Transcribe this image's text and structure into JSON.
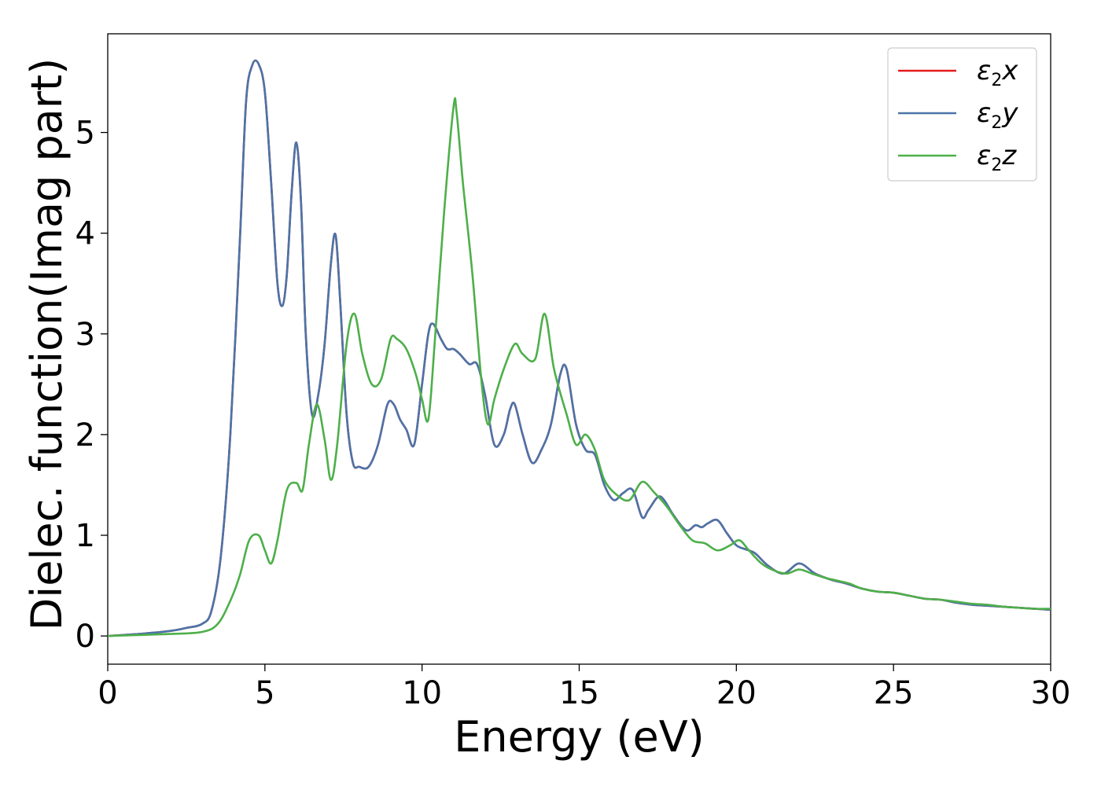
{
  "chart_data": {
    "type": "line",
    "xlabel": "Energy (eV)",
    "ylabel": "Dielec. function(Imag part)",
    "xlim": [
      0,
      30
    ],
    "ylim": [
      -0.28,
      5.98
    ],
    "xticks": [
      0,
      5,
      10,
      15,
      20,
      25,
      30
    ],
    "yticks": [
      0,
      1,
      2,
      3,
      4,
      5
    ],
    "grid": false,
    "legend_position": "top-right",
    "series": [
      {
        "name": "ε₂x",
        "legend_base": "ε",
        "legend_sub": "2",
        "legend_var": "x",
        "color": "#e41a1c",
        "x": [
          0,
          1,
          2,
          2.5,
          3,
          3.3,
          3.6,
          3.9,
          4.2,
          4.4,
          4.6,
          4.8,
          5.0,
          5.2,
          5.4,
          5.56,
          5.7,
          5.85,
          6.0,
          6.15,
          6.3,
          6.5,
          6.7,
          6.9,
          7.1,
          7.25,
          7.4,
          7.6,
          7.8,
          8.0,
          8.3,
          8.6,
          8.9,
          9.1,
          9.3,
          9.5,
          9.75,
          10.0,
          10.2,
          10.35,
          10.6,
          10.8,
          11.0,
          11.2,
          11.5,
          11.75,
          12.0,
          12.3,
          12.6,
          12.8,
          12.95,
          13.2,
          13.5,
          13.8,
          14.1,
          14.4,
          14.6,
          14.9,
          15.2,
          15.5,
          15.8,
          16.1,
          16.4,
          16.7,
          17.0,
          17.2,
          17.5,
          17.7,
          18.0,
          18.4,
          18.7,
          18.9,
          19.1,
          19.4,
          19.7,
          20.0,
          20.3,
          20.6,
          21.0,
          21.5,
          22.0,
          22.5,
          23.0,
          23.5,
          24.0,
          24.5,
          25.0,
          25.5,
          26.0,
          26.5,
          27.0,
          27.5,
          28.0,
          28.5,
          29.0,
          29.5,
          30
        ],
        "y": [
          0.0,
          0.02,
          0.05,
          0.08,
          0.12,
          0.25,
          0.8,
          2.0,
          3.9,
          5.3,
          5.67,
          5.68,
          5.4,
          4.5,
          3.5,
          3.28,
          3.6,
          4.4,
          4.9,
          4.3,
          3.0,
          2.2,
          2.4,
          2.9,
          3.7,
          3.98,
          3.3,
          2.2,
          1.72,
          1.68,
          1.68,
          1.9,
          2.3,
          2.3,
          2.15,
          2.05,
          1.9,
          2.5,
          3.0,
          3.1,
          2.95,
          2.85,
          2.85,
          2.8,
          2.7,
          2.7,
          2.4,
          1.9,
          2.0,
          2.25,
          2.3,
          2.0,
          1.72,
          1.85,
          2.1,
          2.6,
          2.65,
          2.1,
          1.85,
          1.8,
          1.5,
          1.35,
          1.42,
          1.45,
          1.18,
          1.25,
          1.38,
          1.35,
          1.2,
          1.05,
          1.1,
          1.08,
          1.12,
          1.15,
          1.02,
          0.9,
          0.86,
          0.82,
          0.7,
          0.62,
          0.72,
          0.62,
          0.56,
          0.52,
          0.47,
          0.44,
          0.43,
          0.4,
          0.37,
          0.36,
          0.33,
          0.31,
          0.3,
          0.29,
          0.28,
          0.27,
          0.26
        ]
      },
      {
        "name": "ε₂y",
        "legend_base": "ε",
        "legend_sub": "2",
        "legend_var": "y",
        "color": "#4a74a8",
        "x": [
          0,
          1,
          2,
          2.5,
          3,
          3.3,
          3.6,
          3.9,
          4.2,
          4.4,
          4.6,
          4.8,
          5.0,
          5.2,
          5.4,
          5.56,
          5.7,
          5.85,
          6.0,
          6.15,
          6.3,
          6.5,
          6.7,
          6.9,
          7.1,
          7.25,
          7.4,
          7.6,
          7.8,
          8.0,
          8.3,
          8.6,
          8.9,
          9.1,
          9.3,
          9.5,
          9.75,
          10.0,
          10.2,
          10.35,
          10.6,
          10.8,
          11.0,
          11.2,
          11.5,
          11.75,
          12.0,
          12.3,
          12.6,
          12.8,
          12.95,
          13.2,
          13.5,
          13.8,
          14.1,
          14.4,
          14.6,
          14.9,
          15.2,
          15.5,
          15.8,
          16.1,
          16.4,
          16.7,
          17.0,
          17.2,
          17.5,
          17.7,
          18.0,
          18.4,
          18.7,
          18.9,
          19.1,
          19.4,
          19.7,
          20.0,
          20.3,
          20.6,
          21.0,
          21.5,
          22.0,
          22.5,
          23.0,
          23.5,
          24.0,
          24.5,
          25.0,
          25.5,
          26.0,
          26.5,
          27.0,
          27.5,
          28.0,
          28.5,
          29.0,
          29.5,
          30
        ],
        "y": [
          0.0,
          0.02,
          0.05,
          0.08,
          0.12,
          0.25,
          0.8,
          2.0,
          3.9,
          5.3,
          5.67,
          5.68,
          5.4,
          4.5,
          3.5,
          3.28,
          3.6,
          4.4,
          4.9,
          4.3,
          3.0,
          2.2,
          2.4,
          2.9,
          3.7,
          3.98,
          3.3,
          2.2,
          1.72,
          1.68,
          1.68,
          1.9,
          2.3,
          2.3,
          2.15,
          2.05,
          1.9,
          2.5,
          3.0,
          3.1,
          2.95,
          2.85,
          2.85,
          2.8,
          2.7,
          2.7,
          2.4,
          1.9,
          2.0,
          2.25,
          2.3,
          2.0,
          1.72,
          1.85,
          2.1,
          2.6,
          2.65,
          2.1,
          1.85,
          1.8,
          1.5,
          1.35,
          1.42,
          1.45,
          1.18,
          1.25,
          1.38,
          1.35,
          1.2,
          1.05,
          1.1,
          1.08,
          1.12,
          1.15,
          1.02,
          0.9,
          0.86,
          0.82,
          0.7,
          0.62,
          0.72,
          0.62,
          0.56,
          0.52,
          0.47,
          0.44,
          0.43,
          0.4,
          0.37,
          0.36,
          0.33,
          0.31,
          0.3,
          0.29,
          0.28,
          0.27,
          0.26
        ]
      },
      {
        "name": "ε₂z",
        "legend_base": "ε",
        "legend_sub": "2",
        "legend_var": "z",
        "color": "#4daf4a",
        "x": [
          0,
          2,
          3,
          3.5,
          3.9,
          4.2,
          4.5,
          4.8,
          5.0,
          5.2,
          5.4,
          5.7,
          6.0,
          6.2,
          6.4,
          6.65,
          6.9,
          7.1,
          7.3,
          7.6,
          7.85,
          8.1,
          8.4,
          8.7,
          9.0,
          9.2,
          9.5,
          9.8,
          10.0,
          10.2,
          10.4,
          10.7,
          11.0,
          11.1,
          11.3,
          11.6,
          11.9,
          12.1,
          12.3,
          12.6,
          12.95,
          13.2,
          13.6,
          13.9,
          14.2,
          14.6,
          14.9,
          15.2,
          15.5,
          15.8,
          16.2,
          16.6,
          17.0,
          17.4,
          17.8,
          18.2,
          18.6,
          19.0,
          19.4,
          19.8,
          20.1,
          20.4,
          20.8,
          21.2,
          21.6,
          22.0,
          22.4,
          22.8,
          23.2,
          23.6,
          24.0,
          24.5,
          25.0,
          25.5,
          26.0,
          26.5,
          27.0,
          27.5,
          28.0,
          28.5,
          29.0,
          29.5,
          30
        ],
        "y": [
          0.0,
          0.02,
          0.04,
          0.12,
          0.35,
          0.6,
          0.95,
          1.0,
          0.85,
          0.72,
          0.95,
          1.45,
          1.52,
          1.45,
          1.9,
          2.3,
          1.95,
          1.55,
          1.9,
          2.9,
          3.2,
          2.8,
          2.5,
          2.55,
          2.95,
          2.95,
          2.85,
          2.6,
          2.35,
          2.15,
          2.9,
          4.2,
          5.25,
          5.2,
          4.5,
          3.6,
          2.5,
          2.1,
          2.35,
          2.65,
          2.9,
          2.8,
          2.75,
          3.2,
          2.65,
          2.2,
          1.9,
          2.0,
          1.85,
          1.55,
          1.4,
          1.35,
          1.53,
          1.42,
          1.28,
          1.1,
          0.95,
          0.92,
          0.85,
          0.9,
          0.95,
          0.85,
          0.72,
          0.65,
          0.62,
          0.66,
          0.62,
          0.58,
          0.55,
          0.52,
          0.47,
          0.44,
          0.43,
          0.4,
          0.37,
          0.36,
          0.34,
          0.32,
          0.31,
          0.29,
          0.28,
          0.27,
          0.27
        ]
      }
    ]
  }
}
